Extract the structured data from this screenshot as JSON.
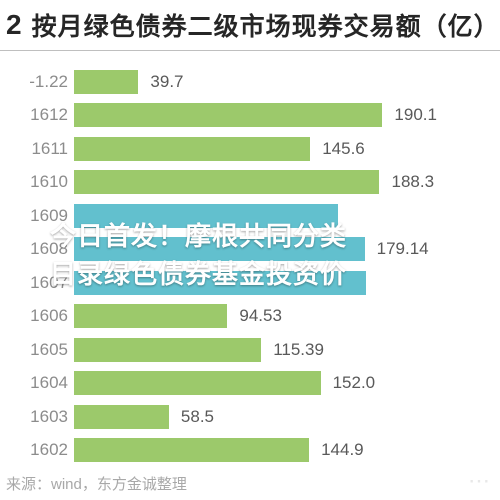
{
  "header": {
    "index": "2",
    "title": "按月绿色债券二级市场现券交易额（亿）"
  },
  "chart": {
    "type": "bar-horizontal",
    "xmax": 200,
    "bar_color_default": "#9cc96b",
    "bar_color_highlight": "#62c0ce",
    "label_color": "#8c8c8c",
    "value_color": "#595959",
    "rows": [
      {
        "label": "-1.22",
        "value": 39.7,
        "display": "39.7",
        "highlight": false
      },
      {
        "label": "1612",
        "value": 190.1,
        "display": "190.1",
        "highlight": false
      },
      {
        "label": "1611",
        "value": 145.6,
        "display": "145.6",
        "highlight": false
      },
      {
        "label": "1610",
        "value": 188.3,
        "display": "188.3",
        "highlight": false
      },
      {
        "label": "1609",
        "value": 163,
        "display": "",
        "highlight": true
      },
      {
        "label": "1608",
        "value": 179.14,
        "display": "179.14",
        "highlight": true
      },
      {
        "label": "1607",
        "value": 180,
        "display": "",
        "highlight": true
      },
      {
        "label": "1606",
        "value": 94.53,
        "display": "94.53",
        "highlight": false
      },
      {
        "label": "1605",
        "value": 115.39,
        "display": "115.39",
        "highlight": false
      },
      {
        "label": "1604",
        "value": 152.0,
        "display": "152.0",
        "highlight": false
      },
      {
        "label": "1603",
        "value": 58.5,
        "display": "58.5",
        "highlight": false
      },
      {
        "label": "1602",
        "value": 144.9,
        "display": "144.9",
        "highlight": false
      }
    ]
  },
  "overlay": {
    "line1": "今日首发！摩根共同分类",
    "line2": "目录绿色债券基金投资价"
  },
  "footer": {
    "text": "来源：wind，东方金诚整理"
  },
  "watermark": "⋯"
}
